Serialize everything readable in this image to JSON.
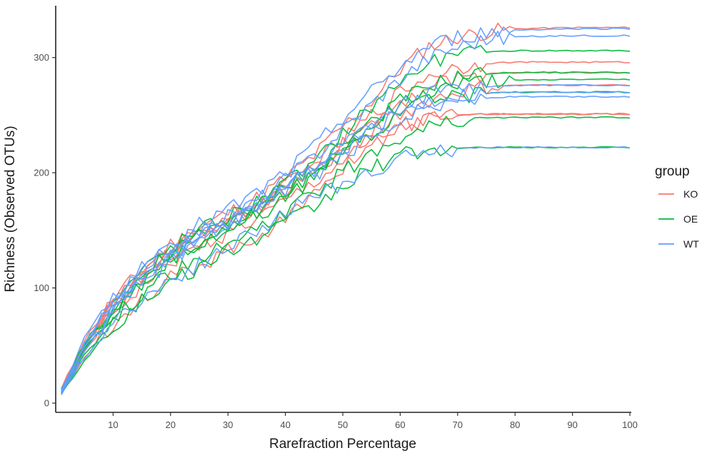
{
  "chart_data": {
    "type": "line",
    "title": "",
    "xlabel": "Rarefraction Percentage",
    "ylabel": "Richness (Observed OTUs)",
    "xlim": [
      0,
      100
    ],
    "ylim": [
      -8,
      345
    ],
    "x_ticks": [
      10,
      20,
      30,
      40,
      50,
      60,
      70,
      80,
      90,
      100
    ],
    "y_ticks": [
      0,
      100,
      200,
      300
    ],
    "grid": false,
    "legend": {
      "title": "group",
      "placement": "right",
      "entries": [
        {
          "label": "KO",
          "color": "#F8766D"
        },
        {
          "label": "OE",
          "color": "#00BA38"
        },
        {
          "label": "WT",
          "color": "#619CFF"
        }
      ]
    },
    "group_colors": {
      "KO": "#F8766D",
      "OE": "#00BA38",
      "WT": "#619CFF"
    },
    "series": [
      {
        "group": "KO",
        "x": [
          1,
          5,
          10,
          15,
          20,
          25,
          30,
          35,
          40,
          45,
          50,
          55,
          60,
          65,
          70,
          75,
          80,
          90,
          100
        ],
        "y": [
          12,
          55,
          90,
          115,
          138,
          152,
          165,
          178,
          195,
          215,
          240,
          262,
          290,
          310,
          318,
          322,
          325,
          326,
          326
        ]
      },
      {
        "group": "KO",
        "x": [
          1,
          5,
          10,
          15,
          20,
          25,
          30,
          35,
          40,
          45,
          50,
          55,
          60,
          65,
          70,
          75,
          80,
          90,
          100
        ],
        "y": [
          10,
          50,
          85,
          112,
          132,
          148,
          160,
          172,
          188,
          208,
          228,
          250,
          270,
          285,
          292,
          295,
          296,
          296,
          296
        ]
      },
      {
        "group": "KO",
        "x": [
          1,
          5,
          10,
          15,
          20,
          25,
          30,
          35,
          40,
          45,
          50,
          55,
          60,
          65,
          70,
          75,
          80,
          90,
          100
        ],
        "y": [
          11,
          52,
          86,
          110,
          130,
          145,
          158,
          172,
          188,
          205,
          225,
          245,
          262,
          275,
          282,
          286,
          287,
          287,
          287
        ]
      },
      {
        "group": "KO",
        "x": [
          1,
          5,
          10,
          15,
          20,
          25,
          30,
          35,
          40,
          45,
          50,
          55,
          60,
          65,
          70,
          75,
          80,
          90,
          100
        ],
        "y": [
          10,
          48,
          82,
          108,
          128,
          142,
          155,
          168,
          184,
          200,
          218,
          236,
          250,
          262,
          270,
          274,
          276,
          276,
          276
        ]
      },
      {
        "group": "KO",
        "x": [
          1,
          5,
          10,
          15,
          20,
          25,
          30,
          35,
          40,
          45,
          50,
          55,
          60,
          65,
          70,
          75,
          80,
          90,
          100
        ],
        "y": [
          9,
          45,
          78,
          102,
          122,
          136,
          148,
          160,
          175,
          192,
          210,
          226,
          238,
          246,
          250,
          251,
          251,
          251,
          251
        ]
      },
      {
        "group": "KO",
        "x": [
          1,
          5,
          10,
          15,
          20,
          25,
          30,
          35,
          40,
          45,
          50,
          55,
          60,
          65,
          70,
          75,
          80,
          90,
          100
        ],
        "y": [
          8,
          40,
          70,
          92,
          108,
          120,
          132,
          145,
          160,
          180,
          205,
          225,
          240,
          248,
          250,
          251,
          251,
          251,
          251
        ]
      },
      {
        "group": "OE",
        "x": [
          1,
          5,
          10,
          15,
          20,
          25,
          30,
          35,
          40,
          45,
          50,
          55,
          60,
          65,
          70,
          75,
          80,
          90,
          100
        ],
        "y": [
          12,
          52,
          88,
          115,
          135,
          150,
          162,
          175,
          190,
          208,
          235,
          258,
          280,
          295,
          302,
          305,
          306,
          306,
          306
        ]
      },
      {
        "group": "OE",
        "x": [
          1,
          5,
          10,
          15,
          20,
          25,
          30,
          35,
          40,
          45,
          50,
          55,
          60,
          65,
          70,
          75,
          80,
          90,
          100
        ],
        "y": [
          11,
          50,
          84,
          110,
          130,
          145,
          158,
          172,
          188,
          205,
          225,
          245,
          262,
          276,
          283,
          286,
          287,
          287,
          287
        ]
      },
      {
        "group": "OE",
        "x": [
          1,
          5,
          10,
          15,
          20,
          25,
          30,
          35,
          40,
          45,
          50,
          55,
          60,
          65,
          70,
          75,
          80,
          90,
          100
        ],
        "y": [
          10,
          48,
          80,
          105,
          125,
          140,
          152,
          165,
          182,
          200,
          220,
          240,
          258,
          270,
          276,
          279,
          280,
          281,
          281
        ]
      },
      {
        "group": "OE",
        "x": [
          1,
          5,
          10,
          15,
          20,
          25,
          30,
          35,
          40,
          45,
          50,
          55,
          60,
          65,
          70,
          75,
          80,
          90,
          100
        ],
        "y": [
          10,
          46,
          78,
          102,
          122,
          138,
          150,
          162,
          178,
          196,
          215,
          235,
          252,
          262,
          267,
          269,
          270,
          270,
          270
        ]
      },
      {
        "group": "OE",
        "x": [
          1,
          5,
          10,
          15,
          20,
          25,
          30,
          35,
          40,
          45,
          50,
          55,
          60,
          65,
          70,
          75,
          80,
          90,
          100
        ],
        "y": [
          9,
          42,
          72,
          95,
          112,
          125,
          138,
          150,
          165,
          182,
          200,
          218,
          232,
          242,
          246,
          248,
          248,
          248,
          248
        ]
      },
      {
        "group": "OE",
        "x": [
          1,
          5,
          10,
          15,
          20,
          25,
          30,
          35,
          40,
          45,
          50,
          55,
          60,
          65,
          70,
          75,
          80,
          90,
          100
        ],
        "y": [
          8,
          38,
          66,
          88,
          104,
          118,
          130,
          142,
          156,
          170,
          188,
          204,
          215,
          220,
          221,
          222,
          222,
          222,
          222
        ]
      },
      {
        "group": "WT",
        "x": [
          1,
          5,
          10,
          15,
          20,
          25,
          30,
          35,
          40,
          45,
          50,
          55,
          60,
          65,
          70,
          75,
          80,
          90,
          100
        ],
        "y": [
          12,
          56,
          92,
          118,
          140,
          155,
          168,
          182,
          200,
          222,
          248,
          270,
          292,
          310,
          318,
          322,
          324,
          325,
          325
        ]
      },
      {
        "group": "WT",
        "x": [
          1,
          5,
          10,
          15,
          20,
          25,
          30,
          35,
          40,
          45,
          50,
          55,
          60,
          65,
          70,
          75,
          80,
          90,
          100
        ],
        "y": [
          11,
          52,
          88,
          114,
          135,
          150,
          162,
          176,
          194,
          214,
          238,
          260,
          282,
          300,
          310,
          316,
          318,
          319,
          319
        ]
      },
      {
        "group": "WT",
        "x": [
          1,
          5,
          10,
          15,
          20,
          25,
          30,
          35,
          40,
          45,
          50,
          55,
          60,
          65,
          70,
          75,
          80,
          90,
          100
        ],
        "y": [
          10,
          50,
          84,
          110,
          130,
          145,
          158,
          171,
          187,
          204,
          224,
          242,
          258,
          268,
          273,
          275,
          276,
          276,
          276
        ]
      },
      {
        "group": "WT",
        "x": [
          1,
          5,
          10,
          15,
          20,
          25,
          30,
          35,
          40,
          45,
          50,
          55,
          60,
          65,
          70,
          75,
          80,
          90,
          100
        ],
        "y": [
          10,
          48,
          82,
          108,
          128,
          143,
          156,
          170,
          186,
          202,
          220,
          238,
          252,
          262,
          267,
          269,
          270,
          270,
          270
        ]
      },
      {
        "group": "WT",
        "x": [
          1,
          5,
          10,
          15,
          20,
          25,
          30,
          35,
          40,
          45,
          50,
          55,
          60,
          65,
          70,
          75,
          80,
          90,
          100
        ],
        "y": [
          9,
          45,
          78,
          104,
          124,
          140,
          154,
          168,
          184,
          198,
          214,
          232,
          248,
          258,
          263,
          265,
          266,
          266,
          266
        ]
      },
      {
        "group": "WT",
        "x": [
          1,
          5,
          10,
          15,
          20,
          25,
          30,
          35,
          40,
          45,
          50,
          55,
          60,
          65,
          70,
          75,
          80,
          90,
          100
        ],
        "y": [
          8,
          40,
          70,
          90,
          106,
          120,
          134,
          150,
          166,
          178,
          190,
          202,
          212,
          218,
          221,
          222,
          222,
          222,
          222
        ]
      }
    ]
  }
}
